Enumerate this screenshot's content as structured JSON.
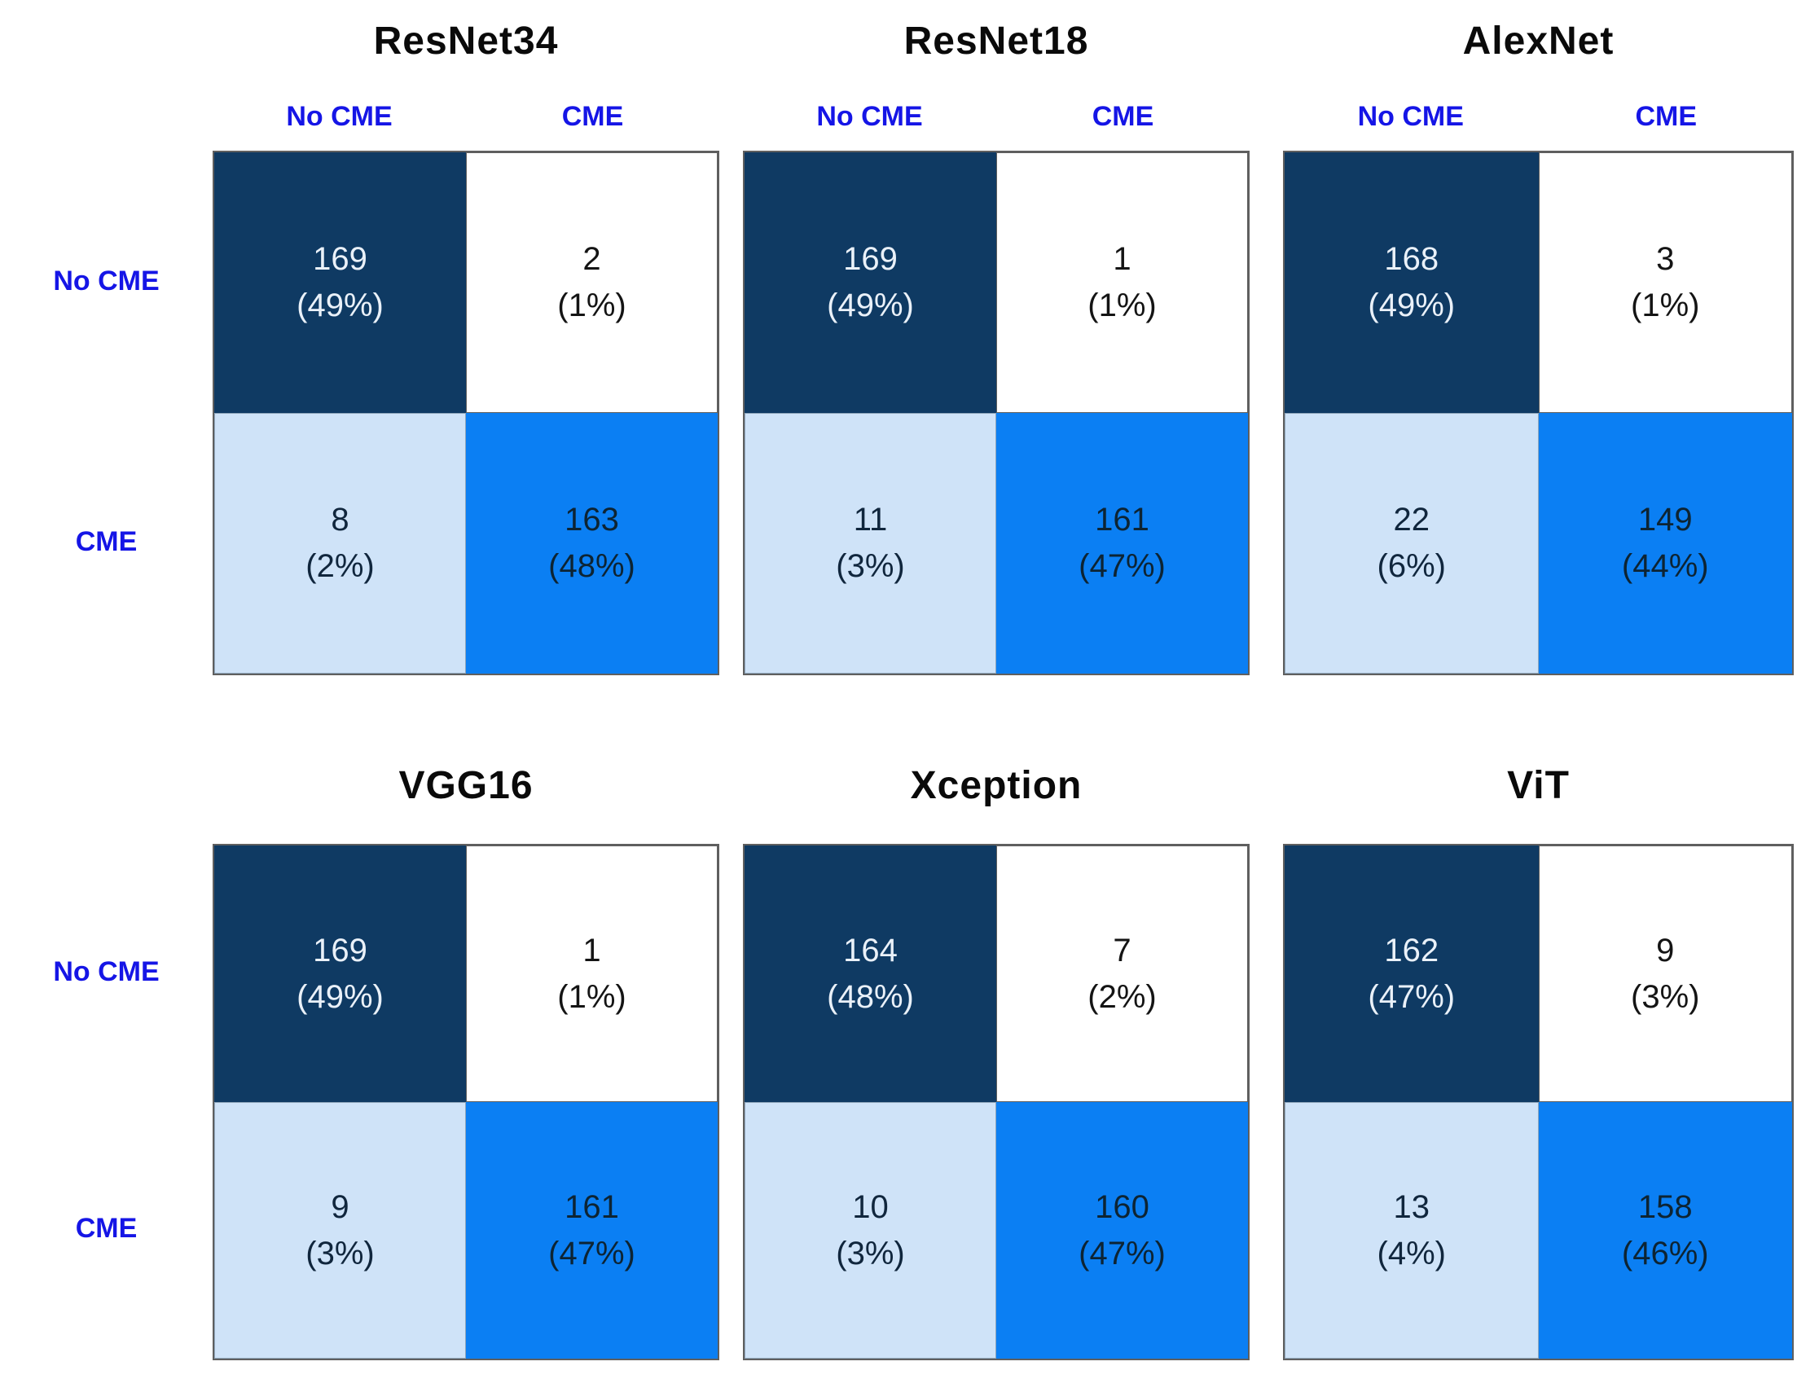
{
  "row_labels": [
    "No CME",
    "CME"
  ],
  "col_headers": [
    "No CME",
    "CME"
  ],
  "colors": {
    "cell_dark": "#0F3A63",
    "cell_light": "#CFE3F8",
    "cell_bright": "#0B7FF3",
    "label_blue": "#1515E6"
  },
  "panels": [
    {
      "title": "ResNet34",
      "cells": [
        {
          "count": "169",
          "pct": "(49%)"
        },
        {
          "count": "2",
          "pct": "(1%)"
        },
        {
          "count": "8",
          "pct": "(2%)"
        },
        {
          "count": "163",
          "pct": "(48%)"
        }
      ]
    },
    {
      "title": "ResNet18",
      "cells": [
        {
          "count": "169",
          "pct": "(49%)"
        },
        {
          "count": "1",
          "pct": "(1%)"
        },
        {
          "count": "11",
          "pct": "(3%)"
        },
        {
          "count": "161",
          "pct": "(47%)"
        }
      ]
    },
    {
      "title": "AlexNet",
      "cells": [
        {
          "count": "168",
          "pct": "(49%)"
        },
        {
          "count": "3",
          "pct": "(1%)"
        },
        {
          "count": "22",
          "pct": "(6%)"
        },
        {
          "count": "149",
          "pct": "(44%)"
        }
      ]
    },
    {
      "title": "VGG16",
      "cells": [
        {
          "count": "169",
          "pct": "(49%)"
        },
        {
          "count": "1",
          "pct": "(1%)"
        },
        {
          "count": "9",
          "pct": "(3%)"
        },
        {
          "count": "161",
          "pct": "(47%)"
        }
      ]
    },
    {
      "title": "Xception",
      "cells": [
        {
          "count": "164",
          "pct": "(48%)"
        },
        {
          "count": "7",
          "pct": "(2%)"
        },
        {
          "count": "10",
          "pct": "(3%)"
        },
        {
          "count": "160",
          "pct": "(47%)"
        }
      ]
    },
    {
      "title": "ViT",
      "cells": [
        {
          "count": "162",
          "pct": "(47%)"
        },
        {
          "count": "9",
          "pct": "(3%)"
        },
        {
          "count": "13",
          "pct": "(4%)"
        },
        {
          "count": "158",
          "pct": "(46%)"
        }
      ]
    }
  ],
  "chart_data": [
    {
      "type": "heatmap",
      "title": "ResNet34",
      "x_labels": [
        "No CME",
        "CME"
      ],
      "y_labels": [
        "No CME",
        "CME"
      ],
      "values": [
        [
          169,
          2
        ],
        [
          8,
          163
        ]
      ],
      "percents": [
        [
          "49%",
          "1%"
        ],
        [
          "2%",
          "48%"
        ]
      ]
    },
    {
      "type": "heatmap",
      "title": "ResNet18",
      "x_labels": [
        "No CME",
        "CME"
      ],
      "y_labels": [
        "No CME",
        "CME"
      ],
      "values": [
        [
          169,
          1
        ],
        [
          11,
          161
        ]
      ],
      "percents": [
        [
          "49%",
          "1%"
        ],
        [
          "3%",
          "47%"
        ]
      ]
    },
    {
      "type": "heatmap",
      "title": "AlexNet",
      "x_labels": [
        "No CME",
        "CME"
      ],
      "y_labels": [
        "No CME",
        "CME"
      ],
      "values": [
        [
          168,
          3
        ],
        [
          22,
          149
        ]
      ],
      "percents": [
        [
          "49%",
          "1%"
        ],
        [
          "6%",
          "44%"
        ]
      ]
    },
    {
      "type": "heatmap",
      "title": "VGG16",
      "x_labels": [
        "No CME",
        "CME"
      ],
      "y_labels": [
        "No CME",
        "CME"
      ],
      "values": [
        [
          169,
          1
        ],
        [
          9,
          161
        ]
      ],
      "percents": [
        [
          "49%",
          "1%"
        ],
        [
          "3%",
          "47%"
        ]
      ]
    },
    {
      "type": "heatmap",
      "title": "Xception",
      "x_labels": [
        "No CME",
        "CME"
      ],
      "y_labels": [
        "No CME",
        "CME"
      ],
      "values": [
        [
          164,
          7
        ],
        [
          10,
          160
        ]
      ],
      "percents": [
        [
          "48%",
          "2%"
        ],
        [
          "3%",
          "47%"
        ]
      ]
    },
    {
      "type": "heatmap",
      "title": "ViT",
      "x_labels": [
        "No CME",
        "CME"
      ],
      "y_labels": [
        "No CME",
        "CME"
      ],
      "values": [
        [
          162,
          9
        ],
        [
          13,
          158
        ]
      ],
      "percents": [
        [
          "47%",
          "3%"
        ],
        [
          "4%",
          "46%"
        ]
      ]
    }
  ]
}
